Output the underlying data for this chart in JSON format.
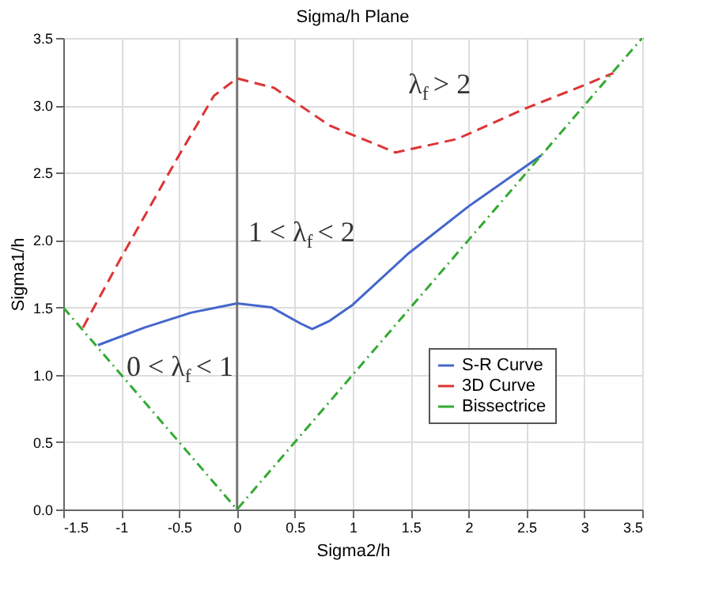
{
  "chart_data": {
    "type": "line",
    "title": "Sigma/h Plane",
    "xlabel": "Sigma2/h",
    "ylabel": "Sigma1/h",
    "xlim": [
      -1.5,
      3.5
    ],
    "xticks": [
      -1.5,
      -1,
      -0.5,
      0,
      0.5,
      1,
      1.5,
      2,
      2.5,
      3,
      3.5
    ],
    "ylim": [
      0,
      3.5
    ],
    "yticks": [
      {
        "value": 0,
        "label": "0.0"
      },
      0.5,
      {
        "value": 1,
        "label": "1.0"
      },
      1.5,
      {
        "value": 2,
        "label": "2.0"
      },
      2.5,
      {
        "value": 3,
        "label": "3.0"
      },
      3.5
    ],
    "grid": true,
    "legend": "bottom right",
    "series": [
      {
        "name": "S-R Curve",
        "color": "#4466cc",
        "line_style": "solid",
        "x": [
          -1.2,
          -0.8,
          -0.4,
          0,
          0.3,
          0.55,
          0.65,
          0.8,
          1.0,
          1.48,
          2.0,
          2.63
        ],
        "values": [
          1.22,
          1.35,
          1.46,
          1.53,
          1.5,
          1.38,
          1.34,
          1.4,
          1.52,
          1.9,
          2.25,
          2.63
        ]
      },
      {
        "name": "3D Curve",
        "color": "#dd3333",
        "line_style": "dashed",
        "x": [
          -1.33,
          -1.0,
          -0.52,
          -0.2,
          0,
          0.32,
          0.8,
          1.37,
          1.9,
          2.5,
          3.0,
          3.25
        ],
        "values": [
          1.35,
          1.87,
          2.6,
          3.07,
          3.2,
          3.13,
          2.85,
          2.65,
          2.75,
          2.98,
          3.15,
          3.24
        ]
      },
      {
        "name": "Bissectrice",
        "color": "#33aa33",
        "line_style": "dashdot",
        "x": [
          -1.5,
          0,
          3.5
        ],
        "values": [
          1.5,
          0,
          3.5
        ]
      }
    ],
    "ref_lines": [
      {
        "axis": "x",
        "value": 0,
        "color": "#666666"
      }
    ],
    "annotations": [
      "λ$_{f}$ > 2",
      "1 < λ$_{f}$ < 2",
      "0 < λ$_{f}$ < 1"
    ]
  }
}
